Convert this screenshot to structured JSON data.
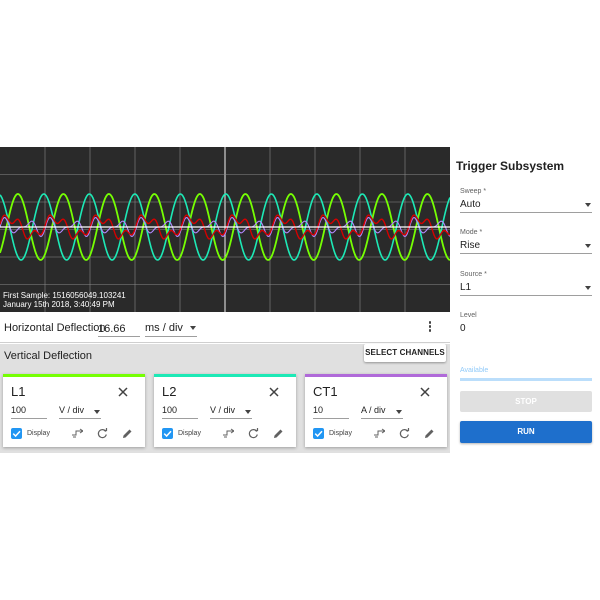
{
  "scope": {
    "first_sample": "First Sample: 1516056049.103241",
    "date": "January 15th 2018, 3:40:49 PM",
    "colors": {
      "background": "#2a2a2a",
      "grid": "#8a8a8a",
      "l1": "#76ff03",
      "l2": "#1de9b6",
      "ct1": "#d50000",
      "trace4": "#b388ff",
      "baseline": "#ffffff"
    }
  },
  "horizontal": {
    "label": "Horizontal Deflection",
    "value": "16.66",
    "unit": "ms / div",
    "more_icon": "more-vert-icon"
  },
  "vertical": {
    "title": "Vertical Deflection",
    "select_channels": "SELECT CHANNELS",
    "channels": [
      {
        "name": "L1",
        "scale": "100",
        "unit": "V / div",
        "display_label": "Display",
        "color": "#76ff03"
      },
      {
        "name": "L2",
        "scale": "100",
        "unit": "V / div",
        "display_label": "Display",
        "color": "#1de9b6"
      },
      {
        "name": "CT1",
        "scale": "10",
        "unit": "A / div",
        "display_label": "Display",
        "color": "#b06ad9"
      }
    ]
  },
  "trigger": {
    "title": "Trigger Subsystem",
    "sweep": {
      "label": "Sweep *",
      "value": "Auto"
    },
    "mode": {
      "label": "Mode *",
      "value": "Rise"
    },
    "source": {
      "label": "Source *",
      "value": "L1"
    },
    "level": {
      "label": "Level",
      "value": "0"
    },
    "available": "Available",
    "stop": "STOP",
    "run": "RUN"
  }
}
